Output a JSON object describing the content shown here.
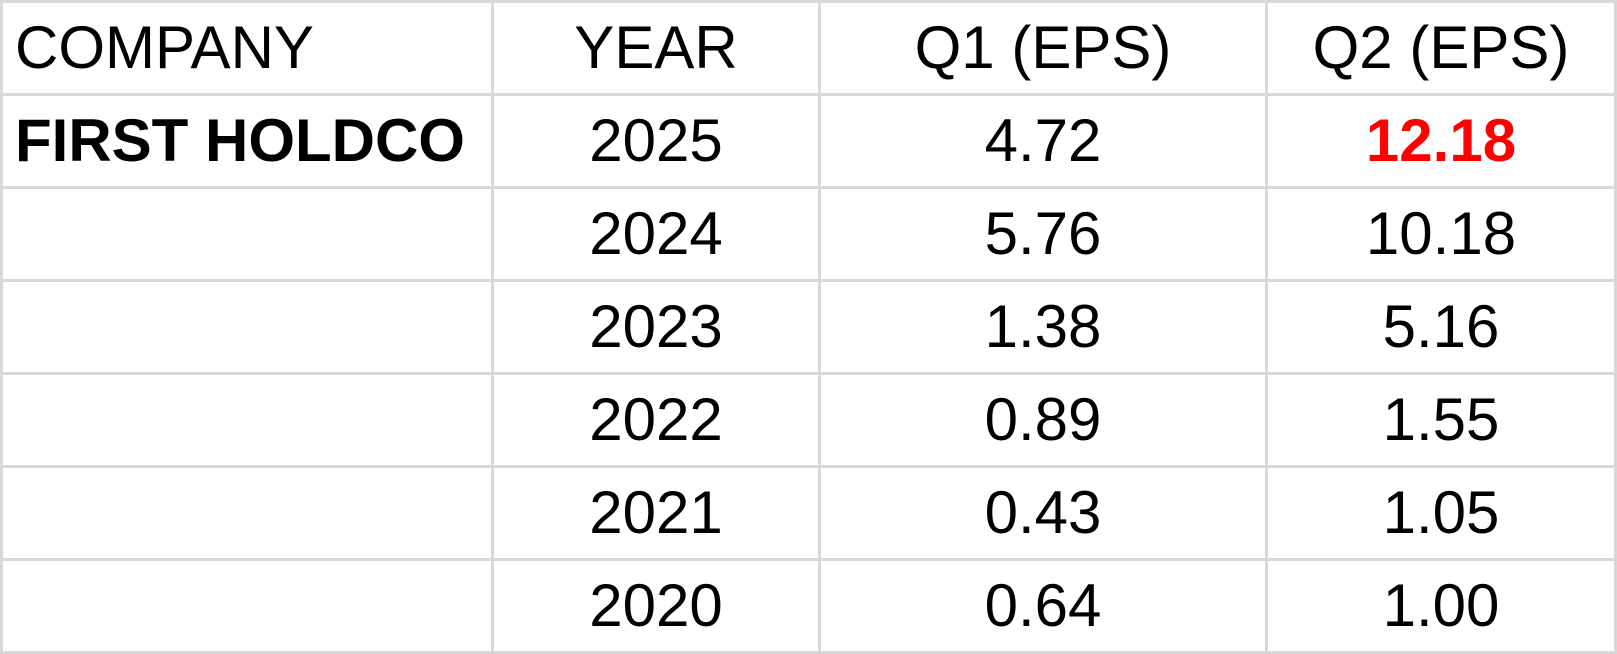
{
  "table": {
    "columns": [
      {
        "key": "company",
        "label": "COMPANY"
      },
      {
        "key": "year",
        "label": "YEAR"
      },
      {
        "key": "q1",
        "label": "Q1 (EPS)"
      },
      {
        "key": "q2",
        "label": "Q2 (EPS)"
      }
    ],
    "rows": [
      {
        "company": "FIRST HOLDCO",
        "company_bold": true,
        "year": "2025",
        "q1": "4.72",
        "q2": "12.18",
        "q2_style": "bold-red"
      },
      {
        "company": "",
        "year": "2024",
        "q1": "5.76",
        "q2": "10.18"
      },
      {
        "company": "",
        "year": "2023",
        "q1": "1.38",
        "q2": "5.16"
      },
      {
        "company": "",
        "year": "2022",
        "q1": "0.89",
        "q2": "1.55"
      },
      {
        "company": "",
        "year": "2021",
        "q1": "0.43",
        "q2": "1.05"
      },
      {
        "company": "",
        "year": "2020",
        "q1": "0.64",
        "q2": "1.00"
      }
    ]
  },
  "colors": {
    "cell_background": "#ffffff",
    "grid_line": "#d8d8d8",
    "text": "#000000",
    "highlight_red": "#ff0000"
  },
  "chart_data": {
    "type": "table",
    "title": "",
    "columns": [
      "COMPANY",
      "YEAR",
      "Q1 (EPS)",
      "Q2 (EPS)"
    ],
    "company": "FIRST HOLDCO",
    "categories": [
      2025,
      2024,
      2023,
      2022,
      2021,
      2020
    ],
    "series": [
      {
        "name": "Q1 (EPS)",
        "values": [
          4.72,
          5.76,
          1.38,
          0.89,
          0.43,
          0.64
        ]
      },
      {
        "name": "Q2 (EPS)",
        "values": [
          12.18,
          10.18,
          5.16,
          1.55,
          1.05,
          1.0
        ]
      }
    ],
    "annotations": [
      "Q2 (EPS) value 12.18 for year 2025 is shown in bold red"
    ],
    "layout": {
      "grid": true,
      "header_row": true,
      "company_column_populated_only_first_row": true
    }
  }
}
